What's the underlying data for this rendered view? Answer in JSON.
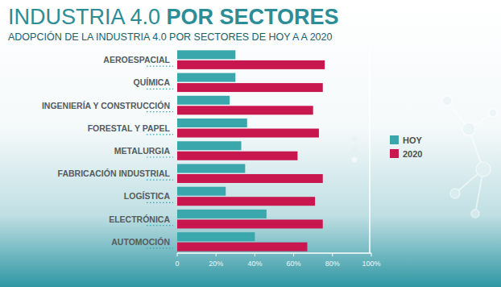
{
  "chart_data": {
    "type": "bar",
    "title": "INDUSTRIA 4.0 POR SECTORES",
    "subtitle": "ADOPCIÓN DE LA INDUSTRIA 4.0 POR SECTORES DE HOY A A 2020",
    "orientation": "horizontal",
    "categories": [
      "AEROESPACIAL",
      "QUÍMICA",
      "INGENIERÍA Y CONSTRUCCIÓN",
      "FORESTAL Y PAPEL",
      "METALURGIA",
      "FABRICACIÓN INDUSTRIAL",
      "LOGÍSTICA",
      "ELECTRÓNICA",
      "AUTOMOCIÓN"
    ],
    "series": [
      {
        "name": "HOY",
        "color": "#3aa7ac",
        "values": [
          30,
          30,
          27,
          36,
          33,
          35,
          25,
          46,
          40
        ]
      },
      {
        "name": "2020",
        "color": "#c8174f",
        "values": [
          76,
          75,
          70,
          73,
          62,
          75,
          71,
          75,
          67
        ]
      }
    ],
    "xlim": [
      0,
      100
    ],
    "xticks": [
      0,
      {
        "value": 20,
        "label": "20%"
      },
      {
        "value": 40,
        "label": "40%"
      },
      {
        "value": 60,
        "label": "60%"
      },
      {
        "value": 80,
        "label": "80%"
      },
      {
        "value": 100,
        "label": "100%"
      }
    ],
    "grid": false,
    "legend": "right"
  }
}
